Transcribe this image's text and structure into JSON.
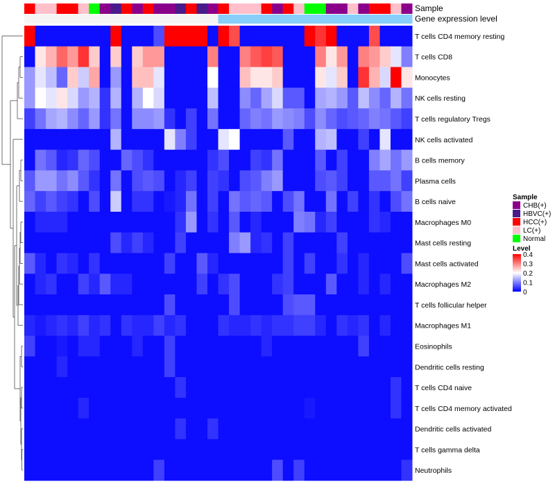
{
  "chart_data": {
    "type": "heatmap",
    "annotations": {
      "sample_title": "Sample",
      "gene_title": "Gene expression level",
      "sample_groups": [
        "HCC(+)",
        "LC(+)",
        "LC(+)",
        "HCC(+)",
        "HCC(+)",
        "LC(+)",
        "Normal",
        "CHB(+)",
        "HBVC(+)",
        "HCC(+)",
        "CHB(+)",
        "HCC(+)",
        "CHB(+)",
        "CHB(+)",
        "HBVC(+)",
        "HCC(+)",
        "HBVC(+)",
        "CHB(+)",
        "HCC(+)",
        "LC(+)",
        "LC(+)",
        "LC(+)",
        "HCC(+)",
        "CHB(+)",
        "HCC(+)",
        "LC(+)",
        "Normal",
        "Normal",
        "CHB(+)",
        "CHB(+)",
        "LC(+)",
        "CHB(+)",
        "HCC(+)",
        "HCC(+)",
        "LC(+)",
        "CHB(+)"
      ],
      "gene_colors": [
        "#f5f5f5",
        "#f5f5f5",
        "#f5f5f5",
        "#f5f5f5",
        "#f5f5f5",
        "#f5f5f5",
        "#f5f5f5",
        "#f5f5f5",
        "#f5f5f5",
        "#f5f5f5",
        "#f5f5f5",
        "#f5f5f5",
        "#f5f5f5",
        "#f5f5f5",
        "#f5f5f5",
        "#f5f5f5",
        "#f5f5f5",
        "#f5f5f5",
        "#87cefa",
        "#87cefa",
        "#87cefa",
        "#87cefa",
        "#87cefa",
        "#87cefa",
        "#87cefa",
        "#87cefa",
        "#87cefa",
        "#87cefa",
        "#87cefa",
        "#87cefa",
        "#87cefa",
        "#87cefa",
        "#87cefa",
        "#87cefa",
        "#87cefa",
        "#87cefa"
      ]
    },
    "rows": [
      {
        "label": "T cells CD4 memory resting",
        "values": [
          0.4,
          0.01,
          0.01,
          0.01,
          0.01,
          0.01,
          0.01,
          0.01,
          0.4,
          0.01,
          0.01,
          0.01,
          0.06,
          0.42,
          0.42,
          0.42,
          0.42,
          0.01,
          0.42,
          0.34,
          0.01,
          0.01,
          0.01,
          0.01,
          0.01,
          0.01,
          0.42,
          0.36,
          0.42,
          0.01,
          0.01,
          0.01,
          0.34,
          0.01,
          0.01,
          0.01
        ]
      },
      {
        "label": "T cells CD8",
        "values": [
          0.01,
          0.22,
          0.26,
          0.32,
          0.28,
          0.36,
          0.24,
          0.01,
          0.24,
          0.01,
          0.24,
          0.28,
          0.28,
          0.01,
          0.01,
          0.01,
          0.01,
          0.3,
          0.01,
          0.01,
          0.3,
          0.33,
          0.35,
          0.33,
          0.01,
          0.01,
          0.01,
          0.3,
          0.22,
          0.28,
          0.01,
          0.3,
          0.28,
          0.24,
          0.18,
          0.1
        ]
      },
      {
        "label": "Monocytes",
        "values": [
          0.12,
          0.18,
          0.15,
          0.08,
          0.24,
          0.16,
          0.27,
          0.01,
          0.12,
          0.01,
          0.25,
          0.25,
          0.18,
          0.01,
          0.01,
          0.01,
          0.01,
          0.2,
          0.01,
          0.01,
          0.25,
          0.22,
          0.22,
          0.24,
          0.01,
          0.01,
          0.01,
          0.22,
          0.18,
          0.24,
          0.01,
          0.36,
          0.26,
          0.17,
          0.4,
          0.22
        ]
      },
      {
        "label": "NK cells resting",
        "values": [
          0.12,
          0.2,
          0.18,
          0.22,
          0.17,
          0.12,
          0.14,
          0.04,
          0.14,
          0.01,
          0.14,
          0.2,
          0.17,
          0.01,
          0.01,
          0.01,
          0.01,
          0.15,
          0.01,
          0.01,
          0.11,
          0.08,
          0.13,
          0.17,
          0.07,
          0.07,
          0.01,
          0.13,
          0.14,
          0.12,
          0.07,
          0.15,
          0.11,
          0.08,
          0.14,
          0.09
        ]
      },
      {
        "label": "T cells regulatory  Tregs",
        "values": [
          0.05,
          0.09,
          0.13,
          0.14,
          0.11,
          0.08,
          0.12,
          0.04,
          0.09,
          0.01,
          0.11,
          0.11,
          0.12,
          0.04,
          0.01,
          0.05,
          0.01,
          0.09,
          0.01,
          0.01,
          0.08,
          0.1,
          0.09,
          0.12,
          0.11,
          0.1,
          0.06,
          0.11,
          0.08,
          0.06,
          0.07,
          0.08,
          0.1,
          0.09,
          0.07,
          0.05
        ]
      },
      {
        "label": "NK cells activated",
        "values": [
          0.01,
          0.01,
          0.01,
          0.01,
          0.01,
          0.01,
          0.01,
          0.01,
          0.14,
          0.01,
          0.01,
          0.01,
          0.01,
          0.18,
          0.1,
          0.05,
          0.01,
          0.01,
          0.18,
          0.2,
          0.01,
          0.01,
          0.01,
          0.01,
          0.07,
          0.01,
          0.01,
          0.14,
          0.15,
          0.01,
          0.01,
          0.05,
          0.01,
          0.18,
          0.01,
          0.01
        ]
      },
      {
        "label": "B cells memory",
        "values": [
          0.01,
          0.09,
          0.07,
          0.03,
          0.04,
          0.08,
          0.06,
          0.01,
          0.01,
          0.08,
          0.06,
          0.04,
          0.01,
          0.01,
          0.01,
          0.01,
          0.01,
          0.04,
          0.06,
          0.01,
          0.01,
          0.05,
          0.04,
          0.09,
          0.01,
          0.01,
          0.01,
          0.07,
          0.01,
          0.05,
          0.01,
          0.01,
          0.1,
          0.13,
          0.09,
          0.12
        ]
      },
      {
        "label": "Plasma cells",
        "values": [
          0.07,
          0.12,
          0.12,
          0.09,
          0.11,
          0.07,
          0.04,
          0.01,
          0.09,
          0.01,
          0.06,
          0.07,
          0.06,
          0.01,
          0.03,
          0.05,
          0.01,
          0.05,
          0.04,
          0.01,
          0.06,
          0.07,
          0.1,
          0.12,
          0.01,
          0.01,
          0.01,
          0.06,
          0.07,
          0.05,
          0.01,
          0.01,
          0.07,
          0.07,
          0.09,
          0.05
        ]
      },
      {
        "label": "B cells naive",
        "values": [
          0.08,
          0.05,
          0.07,
          0.05,
          0.04,
          0.01,
          0.06,
          0.01,
          0.16,
          0.01,
          0.04,
          0.04,
          0.01,
          0.02,
          0.03,
          0.09,
          0.01,
          0.05,
          0.01,
          0.09,
          0.07,
          0.08,
          0.07,
          0.01,
          0.06,
          0.09,
          0.01,
          0.01,
          0.09,
          0.01,
          0.05,
          0.01,
          0.04,
          0.01,
          0.06,
          0.09
        ]
      },
      {
        "label": "Macrophages M0",
        "values": [
          0.01,
          0.03,
          0.03,
          0.03,
          0.01,
          0.01,
          0.01,
          0.01,
          0.01,
          0.01,
          0.01,
          0.01,
          0.01,
          0.01,
          0.04,
          0.12,
          0.01,
          0.04,
          0.01,
          0.07,
          0.01,
          0.03,
          0.01,
          0.01,
          0.01,
          0.1,
          0.09,
          0.03,
          0.05,
          0.01,
          0.01,
          0.01,
          0.04,
          0.03,
          0.01,
          0.01
        ]
      },
      {
        "label": "Mast cells resting",
        "values": [
          0.01,
          0.01,
          0.01,
          0.01,
          0.01,
          0.01,
          0.01,
          0.01,
          0.06,
          0.03,
          0.05,
          0.03,
          0.01,
          0.01,
          0.05,
          0.01,
          0.01,
          0.01,
          0.01,
          0.1,
          0.12,
          0.03,
          0.04,
          0.01,
          0.05,
          0.01,
          0.01,
          0.01,
          0.01,
          0.05,
          0.01,
          0.01,
          0.01,
          0.01,
          0.01,
          0.01
        ]
      },
      {
        "label": "Mast cells activated",
        "values": [
          0.07,
          0.03,
          0.01,
          0.04,
          0.03,
          0.01,
          0.04,
          0.01,
          0.01,
          0.01,
          0.01,
          0.01,
          0.01,
          0.05,
          0.01,
          0.01,
          0.07,
          0.03,
          0.01,
          0.01,
          0.01,
          0.01,
          0.01,
          0.01,
          0.05,
          0.01,
          0.05,
          0.01,
          0.01,
          0.04,
          0.01,
          0.03,
          0.01,
          0.01,
          0.01,
          0.06
        ]
      },
      {
        "label": "Macrophages M2",
        "values": [
          0.01,
          0.03,
          0.04,
          0.01,
          0.01,
          0.05,
          0.03,
          0.07,
          0.03,
          0.03,
          0.01,
          0.01,
          0.01,
          0.01,
          0.01,
          0.01,
          0.05,
          0.01,
          0.04,
          0.06,
          0.01,
          0.01,
          0.01,
          0.04,
          0.05,
          0.01,
          0.01,
          0.01,
          0.07,
          0.01,
          0.01,
          0.03,
          0.01,
          0.03,
          0.01,
          0.01
        ]
      },
      {
        "label": "T cells follicular helper",
        "values": [
          0.01,
          0.01,
          0.01,
          0.01,
          0.01,
          0.01,
          0.01,
          0.01,
          0.01,
          0.01,
          0.01,
          0.01,
          0.01,
          0.06,
          0.01,
          0.01,
          0.01,
          0.01,
          0.01,
          0.06,
          0.01,
          0.01,
          0.01,
          0.01,
          0.06,
          0.07,
          0.07,
          0.01,
          0.01,
          0.01,
          0.01,
          0.01,
          0.01,
          0.01,
          0.01,
          0.01
        ]
      },
      {
        "label": "Macrophages M1",
        "values": [
          0.03,
          0.02,
          0.03,
          0.04,
          0.03,
          0.05,
          0.03,
          0.04,
          0.01,
          0.04,
          0.03,
          0.03,
          0.05,
          0.03,
          0.04,
          0.01,
          0.01,
          0.01,
          0.04,
          0.03,
          0.03,
          0.04,
          0.03,
          0.04,
          0.04,
          0.05,
          0.05,
          0.03,
          0.01,
          0.04,
          0.03,
          0.04,
          0.01,
          0.03,
          0.01,
          0.01
        ]
      },
      {
        "label": "Eosinophils",
        "values": [
          0.05,
          0.01,
          0.01,
          0.02,
          0.01,
          0.03,
          0.03,
          0.01,
          0.01,
          0.01,
          0.03,
          0.01,
          0.01,
          0.05,
          0.01,
          0.01,
          0.01,
          0.01,
          0.01,
          0.01,
          0.01,
          0.01,
          0.03,
          0.01,
          0.01,
          0.01,
          0.01,
          0.01,
          0.01,
          0.01,
          0.01,
          0.05,
          0.01,
          0.01,
          0.01,
          0.01
        ]
      },
      {
        "label": "Dendritic cells resting",
        "values": [
          0.01,
          0.01,
          0.01,
          0.03,
          0.01,
          0.01,
          0.01,
          0.01,
          0.01,
          0.01,
          0.01,
          0.01,
          0.01,
          0.05,
          0.01,
          0.01,
          0.01,
          0.01,
          0.01,
          0.01,
          0.01,
          0.01,
          0.01,
          0.01,
          0.01,
          0.01,
          0.01,
          0.01,
          0.01,
          0.01,
          0.01,
          0.01,
          0.01,
          0.01,
          0.01,
          0.01
        ]
      },
      {
        "label": "T cells CD4 naive",
        "values": [
          0.01,
          0.01,
          0.01,
          0.01,
          0.01,
          0.01,
          0.01,
          0.01,
          0.01,
          0.01,
          0.01,
          0.01,
          0.01,
          0.01,
          0.04,
          0.01,
          0.01,
          0.01,
          0.01,
          0.01,
          0.01,
          0.01,
          0.01,
          0.01,
          0.01,
          0.01,
          0.01,
          0.01,
          0.01,
          0.01,
          0.01,
          0.01,
          0.01,
          0.01,
          0.04,
          0.01
        ]
      },
      {
        "label": "T cells CD4 memory activated",
        "values": [
          0.01,
          0.01,
          0.01,
          0.01,
          0.01,
          0.03,
          0.01,
          0.01,
          0.01,
          0.01,
          0.01,
          0.01,
          0.01,
          0.01,
          0.01,
          0.01,
          0.01,
          0.01,
          0.01,
          0.01,
          0.01,
          0.01,
          0.01,
          0.01,
          0.01,
          0.01,
          0.02,
          0.01,
          0.01,
          0.01,
          0.01,
          0.01,
          0.01,
          0.01,
          0.04,
          0.01
        ]
      },
      {
        "label": "Dendritic cells activated",
        "values": [
          0.01,
          0.01,
          0.01,
          0.01,
          0.01,
          0.01,
          0.01,
          0.01,
          0.01,
          0.01,
          0.01,
          0.01,
          0.01,
          0.01,
          0.04,
          0.01,
          0.01,
          0.04,
          0.01,
          0.01,
          0.01,
          0.01,
          0.01,
          0.01,
          0.01,
          0.01,
          0.01,
          0.01,
          0.01,
          0.01,
          0.01,
          0.01,
          0.01,
          0.01,
          0.01,
          0.01
        ]
      },
      {
        "label": "T cells gamma delta",
        "values": [
          0.01,
          0.01,
          0.01,
          0.01,
          0.01,
          0.01,
          0.01,
          0.01,
          0.01,
          0.01,
          0.01,
          0.01,
          0.01,
          0.01,
          0.01,
          0.01,
          0.01,
          0.01,
          0.01,
          0.01,
          0.01,
          0.01,
          0.01,
          0.01,
          0.01,
          0.01,
          0.01,
          0.01,
          0.01,
          0.01,
          0.01,
          0.01,
          0.01,
          0.01,
          0.01,
          0.01
        ]
      },
      {
        "label": "Neutrophils",
        "values": [
          0.01,
          0.01,
          0.01,
          0.01,
          0.01,
          0.01,
          0.01,
          0.01,
          0.01,
          0.01,
          0.01,
          0.01,
          0.05,
          0.01,
          0.01,
          0.01,
          0.01,
          0.01,
          0.01,
          0.01,
          0.01,
          0.01,
          0.01,
          0.06,
          0.01,
          0.05,
          0.01,
          0.01,
          0.01,
          0.01,
          0.01,
          0.01,
          0.01,
          0.01,
          0.01,
          0.04
        ]
      }
    ],
    "color_scale": {
      "min": 0,
      "max": 0.4,
      "stops": [
        "#0000ff",
        "#ffffff",
        "#ff0000"
      ]
    },
    "legend": {
      "sample_title": "Sample",
      "sample_items": [
        {
          "label": "CHB(+)",
          "color": "#8b008b"
        },
        {
          "label": "HBVC(+)",
          "color": "#4b1a8a"
        },
        {
          "label": "HCC(+)",
          "color": "#ff0000"
        },
        {
          "label": "LC(+)",
          "color": "#ffc0cb"
        },
        {
          "label": "Normal",
          "color": "#00ff00"
        }
      ],
      "level_title": "Level",
      "level_ticks": [
        "0.4",
        "0.3",
        "0.2",
        "0.1",
        "0"
      ],
      "placement": "right"
    }
  }
}
